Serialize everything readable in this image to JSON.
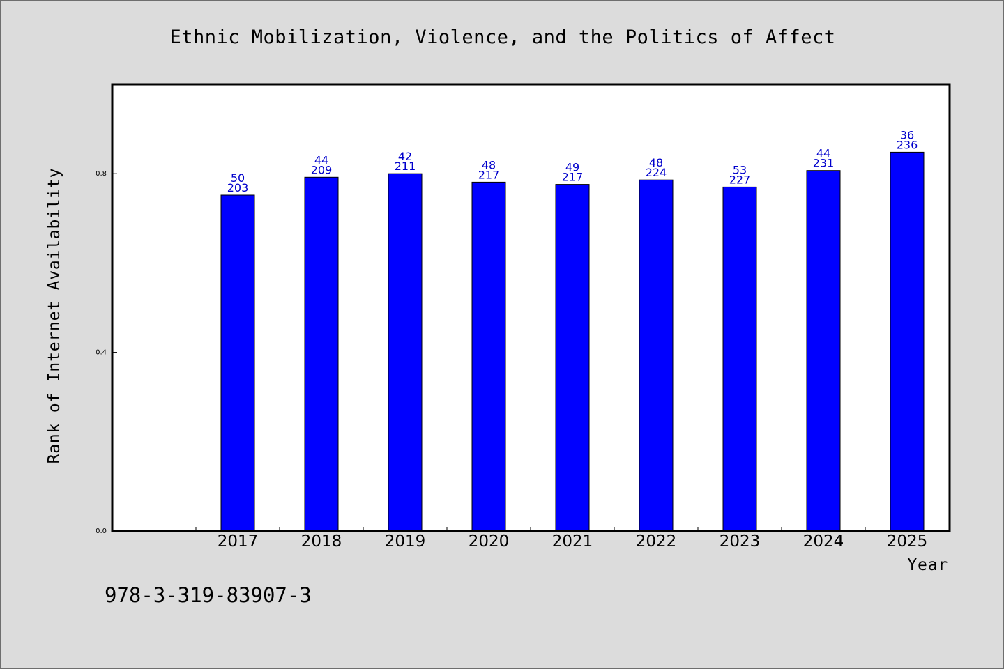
{
  "chart_data": {
    "type": "bar",
    "title": "Ethnic Mobilization, Violence, and the Politics of Affect",
    "xlabel": "Year",
    "ylabel": "Rank of Internet Availability",
    "categories": [
      "2017",
      "2018",
      "2019",
      "2020",
      "2021",
      "2022",
      "2023",
      "2024",
      "2025"
    ],
    "series": [
      {
        "values": [
          0.752,
          0.792,
          0.8,
          0.781,
          0.776,
          0.786,
          0.77,
          0.807,
          0.848
        ]
      }
    ],
    "data_labels": [
      [
        "50",
        "203"
      ],
      [
        "44",
        "209"
      ],
      [
        "42",
        "211"
      ],
      [
        "48",
        "217"
      ],
      [
        "49",
        "217"
      ],
      [
        "48",
        "224"
      ],
      [
        "53",
        "227"
      ],
      [
        "44",
        "231"
      ],
      [
        "36",
        "236"
      ]
    ],
    "ylim": [
      0,
      1.0
    ],
    "yticks": [
      0.0,
      0.4,
      0.8
    ],
    "ytick_labels": [
      "0.0",
      "0.4",
      "0.8"
    ],
    "grid": false,
    "colors": {
      "bar": "#0000ff",
      "bar_edge": "#000000",
      "label": "#0000cc",
      "background": "#dcdcdc",
      "plot_background": "#ffffff"
    }
  },
  "footnote": "978-3-319-83907-3"
}
